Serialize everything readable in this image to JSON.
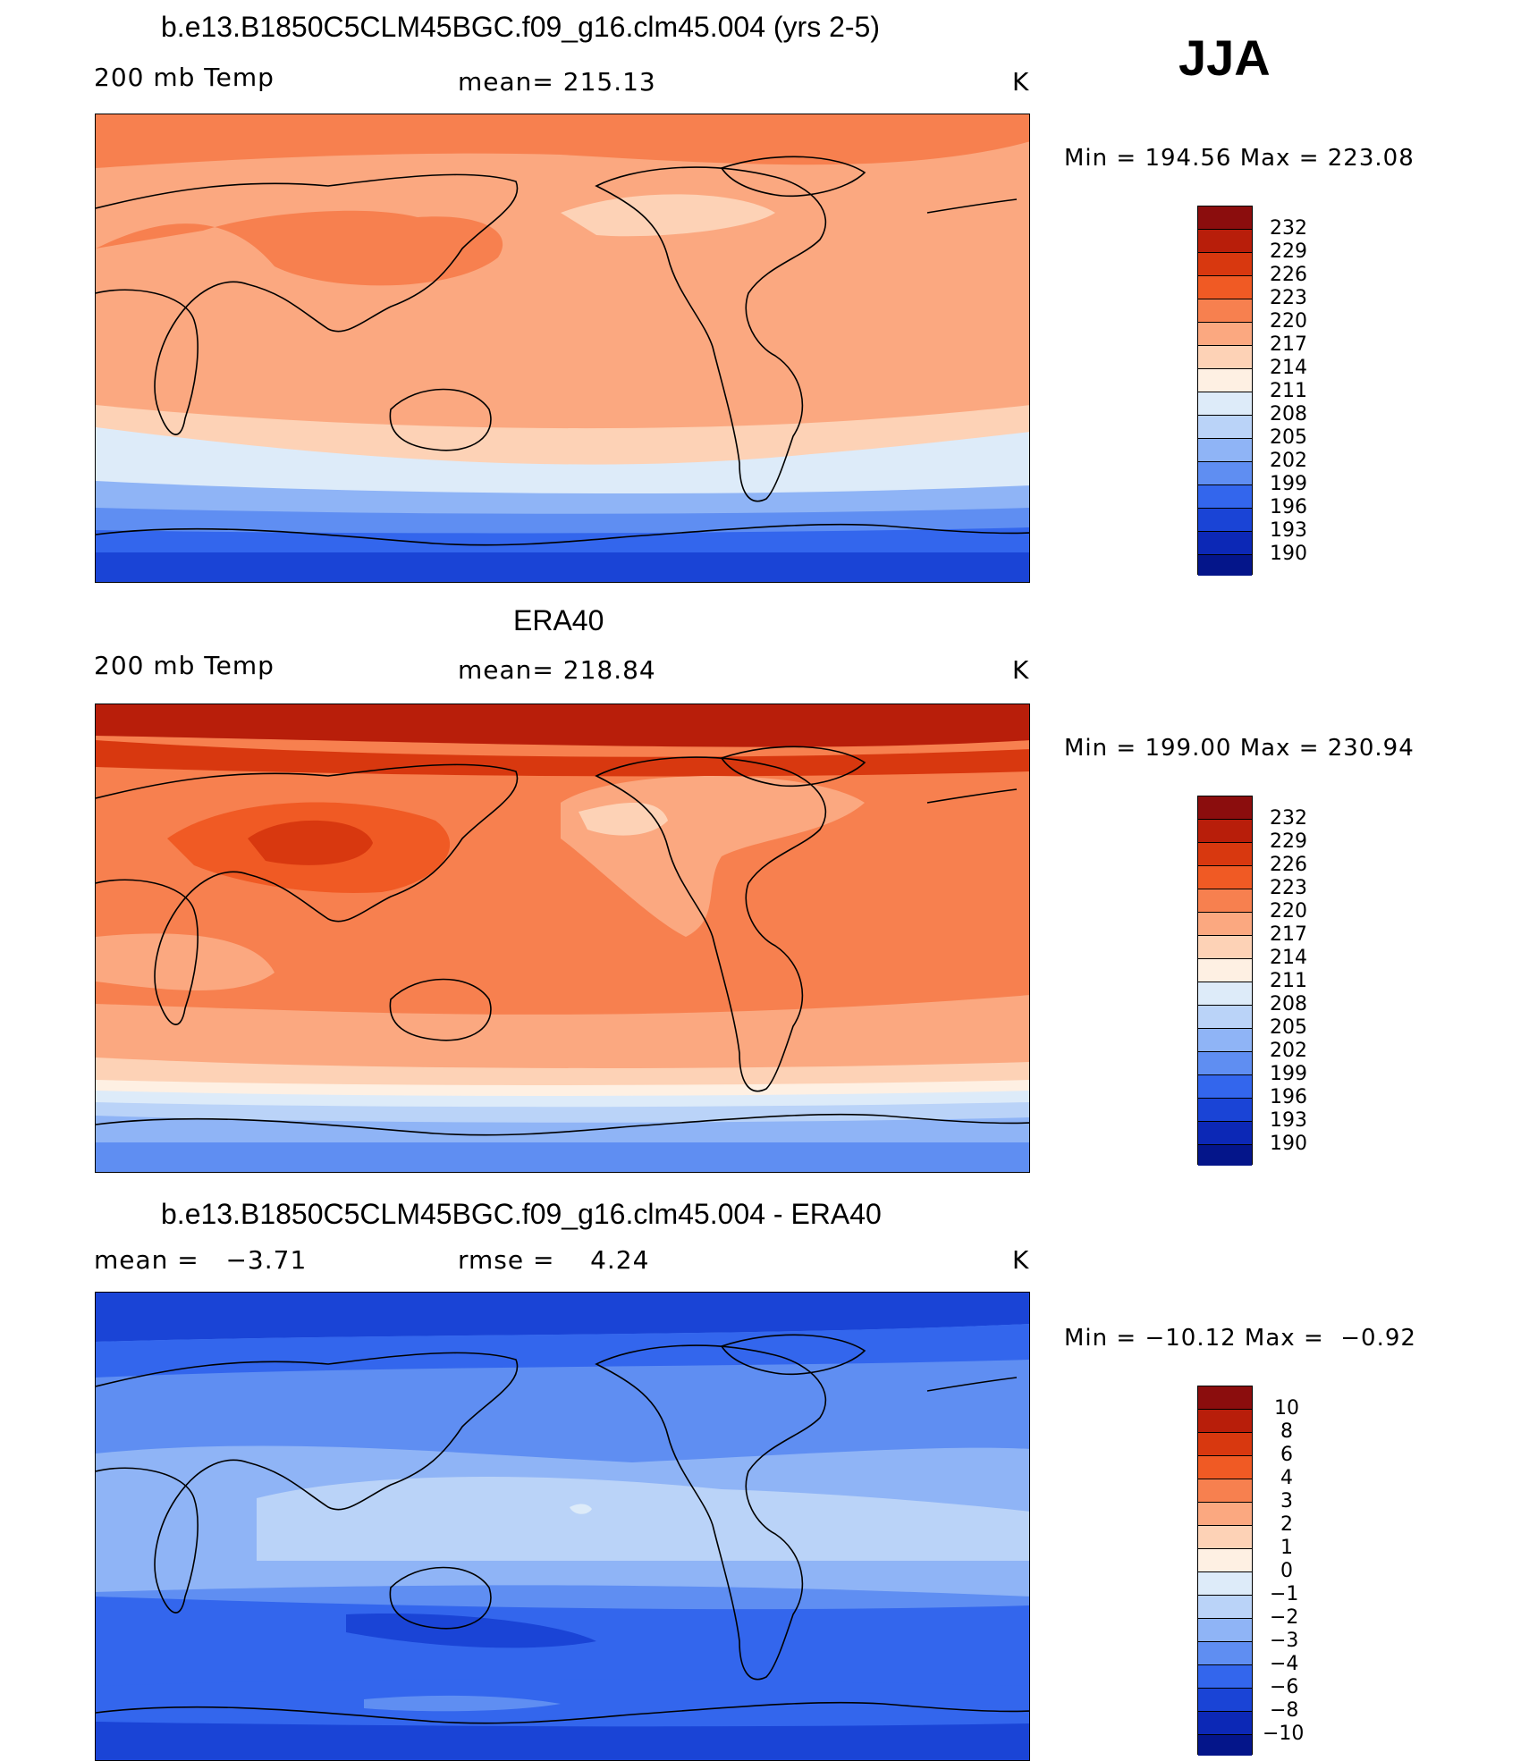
{
  "season": "JJA",
  "panels": [
    {
      "id": "model",
      "title": "b.e13.B1850C5CLM45BGC.f09_g16.clm45.004 (yrs 2-5)",
      "left_label": "200 mb Temp",
      "center_label": "mean= 215.13",
      "units": "K",
      "minmax": "Min = 194.56 Max = 223.08",
      "colorbar_labels": [
        "232",
        "229",
        "226",
        "223",
        "220",
        "217",
        "214",
        "211",
        "208",
        "205",
        "202",
        "199",
        "196",
        "193",
        "190"
      ]
    },
    {
      "id": "obs",
      "title": "ERA40",
      "left_label": "200 mb Temp",
      "center_label": "mean= 218.84",
      "units": "K",
      "minmax": "Min = 199.00 Max = 230.94",
      "colorbar_labels": [
        "232",
        "229",
        "226",
        "223",
        "220",
        "217",
        "214",
        "211",
        "208",
        "205",
        "202",
        "199",
        "196",
        "193",
        "190"
      ]
    },
    {
      "id": "diff",
      "title": "b.e13.B1850C5CLM45BGC.f09_g16.clm45.004 - ERA40",
      "left_label": "mean =   −3.71",
      "center_label": "rmse =    4.24",
      "units": "K",
      "minmax": "Min = −10.12 Max =  −0.92",
      "colorbar_labels": [
        "10",
        "8",
        "6",
        "4",
        "3",
        "2",
        "1",
        "0",
        "−1",
        "−2",
        "−3",
        "−4",
        "−6",
        "−8",
        "−10"
      ]
    }
  ],
  "colors": {
    "palette_warm_to_cold": [
      "#8b0d0d",
      "#b81e0a",
      "#d8380f",
      "#f05a24",
      "#f7804f",
      "#fba880",
      "#fdd2b6",
      "#fef0e3",
      "#ddebf9",
      "#bad3f8",
      "#8fb4f6",
      "#5f8ef2",
      "#3366ed",
      "#1a44d6",
      "#0c28b6",
      "#04158a"
    ]
  }
}
